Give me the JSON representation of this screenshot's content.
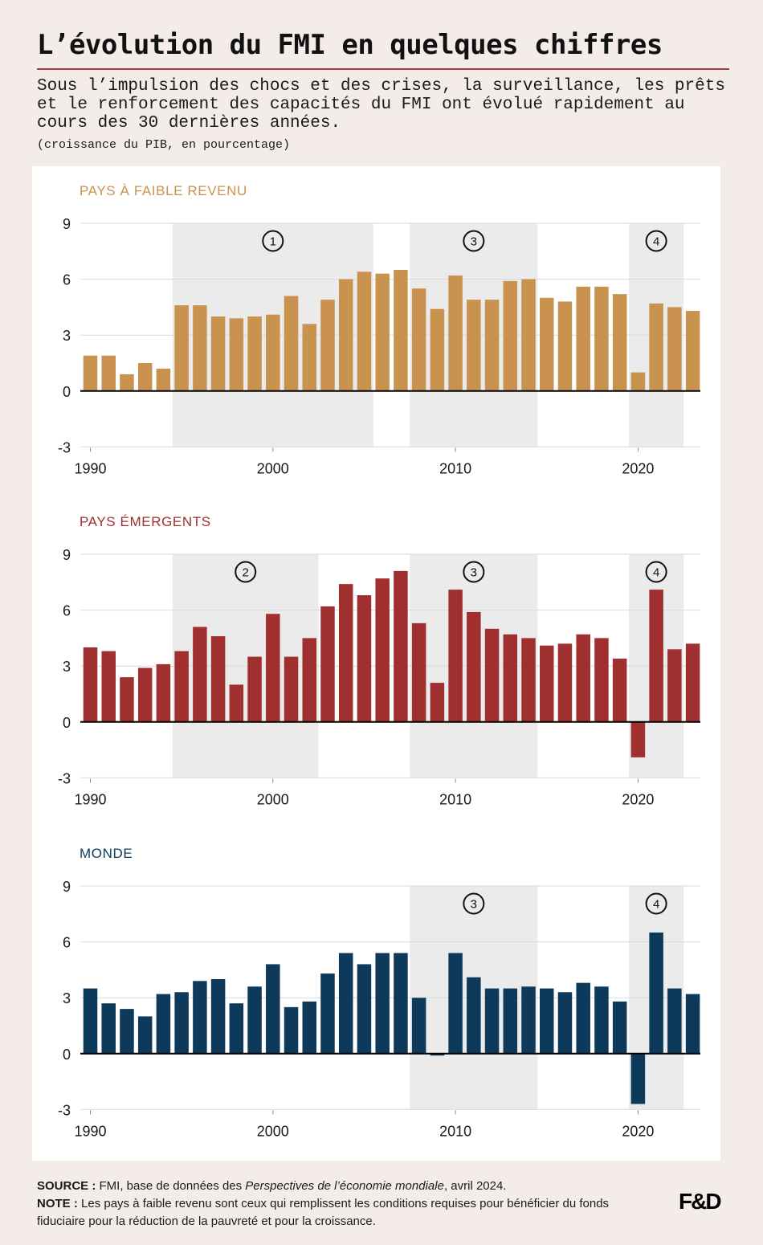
{
  "header": {
    "title": "L’évolution du FMI en quelques chiffres",
    "subtitle": "Sous l’impulsion des chocs et des crises, la surveillance, les prêts et le renforcement des capacités du FMI ont évolué rapidement au cours des 30 dernières années.",
    "unit_note": "(croissance du PIB, en pourcentage)"
  },
  "colors": {
    "background": "#f4ece9",
    "title_rule": "#a53a3a",
    "shade": "#ebebeb",
    "grid": "#d9d9d9",
    "zero_line": "#000000"
  },
  "chart_data": [
    {
      "type": "bar",
      "title": "PAYS À FAIBLE REVENU",
      "color": "#c9934f",
      "xlabel": "",
      "ylabel": "Croissance du PIB (%)",
      "ylim": [
        -3,
        9
      ],
      "yticks": [
        9,
        6,
        3,
        0,
        -3
      ],
      "xticks": [
        1990,
        2000,
        2010,
        2020
      ],
      "grid": true,
      "x": [
        1990,
        1991,
        1992,
        1993,
        1994,
        1995,
        1996,
        1997,
        1998,
        1999,
        2000,
        2001,
        2002,
        2003,
        2004,
        2005,
        2006,
        2007,
        2008,
        2009,
        2010,
        2011,
        2012,
        2013,
        2014,
        2015,
        2016,
        2017,
        2018,
        2019,
        2020,
        2021,
        2022,
        2023
      ],
      "values": [
        1.9,
        1.9,
        0.9,
        1.5,
        1.2,
        4.6,
        4.6,
        4.0,
        3.9,
        4.0,
        4.1,
        5.1,
        3.6,
        4.9,
        6.0,
        6.4,
        6.3,
        6.5,
        5.5,
        4.4,
        6.2,
        4.9,
        4.9,
        5.9,
        6.0,
        5.0,
        4.8,
        5.6,
        5.6,
        5.2,
        1.0,
        4.7,
        4.5,
        4.3
      ],
      "shaded_periods": [
        {
          "start": 1995,
          "end": 2005,
          "label": "1"
        },
        {
          "start": 2008,
          "end": 2014,
          "label": "3"
        },
        {
          "start": 2020,
          "end": 2022,
          "label": "4"
        }
      ]
    },
    {
      "type": "bar",
      "title": "PAYS ÉMERGENTS",
      "color": "#a03030",
      "xlabel": "",
      "ylabel": "Croissance du PIB (%)",
      "ylim": [
        -3,
        9
      ],
      "yticks": [
        9,
        6,
        3,
        0,
        -3
      ],
      "xticks": [
        1990,
        2000,
        2010,
        2020
      ],
      "grid": true,
      "x": [
        1990,
        1991,
        1992,
        1993,
        1994,
        1995,
        1996,
        1997,
        1998,
        1999,
        2000,
        2001,
        2002,
        2003,
        2004,
        2005,
        2006,
        2007,
        2008,
        2009,
        2010,
        2011,
        2012,
        2013,
        2014,
        2015,
        2016,
        2017,
        2018,
        2019,
        2020,
        2021,
        2022,
        2023
      ],
      "values": [
        4.0,
        3.8,
        2.4,
        2.9,
        3.1,
        3.8,
        5.1,
        4.6,
        2.0,
        3.5,
        5.8,
        3.5,
        4.5,
        6.2,
        7.4,
        6.8,
        7.7,
        8.1,
        5.3,
        2.1,
        7.1,
        5.9,
        5.0,
        4.7,
        4.5,
        4.1,
        4.2,
        4.7,
        4.5,
        3.4,
        -1.9,
        7.1,
        3.9,
        4.2
      ],
      "shaded_periods": [
        {
          "start": 1995,
          "end": 2002,
          "label": "2"
        },
        {
          "start": 2008,
          "end": 2014,
          "label": "3"
        },
        {
          "start": 2020,
          "end": 2022,
          "label": "4"
        }
      ]
    },
    {
      "type": "bar",
      "title": "MONDE",
      "color": "#0d3a5a",
      "xlabel": "",
      "ylabel": "Croissance du PIB (%)",
      "ylim": [
        -3,
        9
      ],
      "yticks": [
        9,
        6,
        3,
        0,
        -3
      ],
      "xticks": [
        1990,
        2000,
        2010,
        2020
      ],
      "grid": true,
      "x": [
        1990,
        1991,
        1992,
        1993,
        1994,
        1995,
        1996,
        1997,
        1998,
        1999,
        2000,
        2001,
        2002,
        2003,
        2004,
        2005,
        2006,
        2007,
        2008,
        2009,
        2010,
        2011,
        2012,
        2013,
        2014,
        2015,
        2016,
        2017,
        2018,
        2019,
        2020,
        2021,
        2022,
        2023
      ],
      "values": [
        3.5,
        2.7,
        2.4,
        2.0,
        3.2,
        3.3,
        3.9,
        4.0,
        2.7,
        3.6,
        4.8,
        2.5,
        2.8,
        4.3,
        5.4,
        4.8,
        5.4,
        5.4,
        3.0,
        -0.1,
        5.4,
        4.1,
        3.5,
        3.5,
        3.6,
        3.5,
        3.3,
        3.8,
        3.6,
        2.8,
        -2.7,
        6.5,
        3.5,
        3.2
      ],
      "shaded_periods": [
        {
          "start": 2008,
          "end": 2014,
          "label": "3"
        },
        {
          "start": 2020,
          "end": 2022,
          "label": "4"
        }
      ]
    }
  ],
  "footer": {
    "source_label": "SOURCE :",
    "source_text_before": " FMI, base de données des ",
    "source_italic": "Perspectives de l’économie mondiale",
    "source_text_after": ", avril 2024.",
    "note_label": "NOTE :",
    "note_text": " Les pays à faible revenu sont ceux qui remplissent les conditions requises pour bénéficier du fonds fiduciaire pour la réduction de la pauvreté et pour la croissance.",
    "logo": "F&D"
  }
}
